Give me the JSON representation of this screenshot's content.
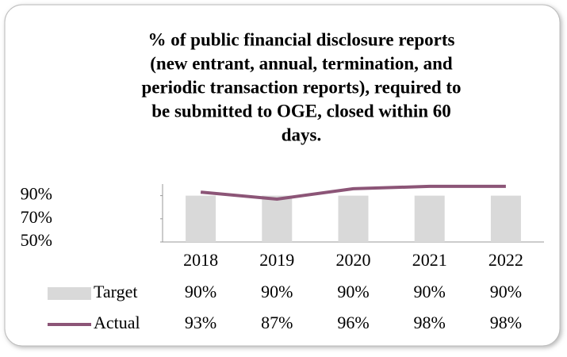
{
  "chart_data": {
    "type": "bar-line",
    "title": [
      "% of public financial disclosure reports",
      "(new entrant, annual, termination, and",
      "periodic transaction reports), required to",
      "be submitted to OGE, closed within 60",
      "days."
    ],
    "categories": [
      "2018",
      "2019",
      "2020",
      "2021",
      "2022"
    ],
    "series": [
      {
        "name": "Target",
        "type": "bar",
        "color": "#d9d9d9",
        "values": [
          90,
          90,
          90,
          90,
          90
        ],
        "value_labels": [
          "90%",
          "90%",
          "90%",
          "90%",
          "90%"
        ]
      },
      {
        "name": "Actual",
        "type": "line",
        "color": "#8c5577",
        "values": [
          93,
          87,
          96,
          98,
          98
        ],
        "value_labels": [
          "93%",
          "87%",
          "96%",
          "98%",
          "98%"
        ]
      }
    ],
    "ylim": [
      50,
      100
    ],
    "yticks": [
      {
        "value": 50,
        "label": "50%"
      },
      {
        "value": 70,
        "label": "70%"
      },
      {
        "value": 90,
        "label": "90%"
      }
    ]
  }
}
